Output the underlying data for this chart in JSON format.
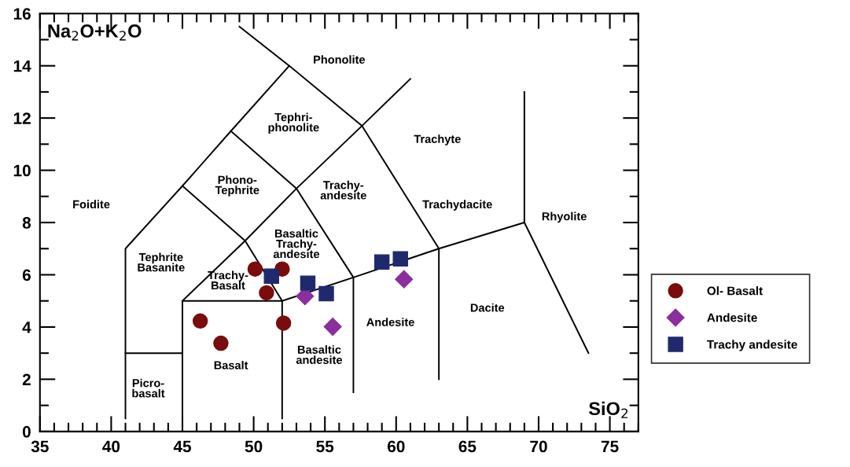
{
  "chart_data": {
    "type": "scatter",
    "xlabel": "SiO$_{2}$",
    "ylabel": "Na$_{2}$O+K$_{2}$O",
    "xlim": [
      35,
      77
    ],
    "ylim": [
      0,
      16
    ],
    "xticks": [
      35,
      40,
      45,
      50,
      55,
      60,
      65,
      70,
      75
    ],
    "yticks": [
      0,
      2,
      4,
      6,
      8,
      10,
      12,
      14,
      16
    ],
    "grid": false,
    "legend": "right",
    "series": [
      {
        "type": "line",
        "color": "#000000",
        "marker": "none",
        "x": [
          41,
          41,
          45,
          48.4,
          52.5,
          49
        ],
        "values": [
          0.5,
          7,
          9.4,
          11.5,
          14,
          15.5
        ]
      },
      {
        "type": "line",
        "color": "#000000",
        "marker": "none",
        "x": [
          41,
          45
        ],
        "values": [
          3,
          3
        ]
      },
      {
        "type": "line",
        "color": "#000000",
        "marker": "none",
        "x": [
          45,
          45,
          52,
          52
        ],
        "values": [
          0,
          5,
          5,
          0.5
        ]
      },
      {
        "type": "line",
        "color": "#000000",
        "marker": "none",
        "x": [
          45,
          49.4,
          53,
          57.6,
          61
        ],
        "values": [
          5,
          7.3,
          9.3,
          11.7,
          13.5
        ]
      },
      {
        "type": "line",
        "color": "#000000",
        "marker": "none",
        "x": [
          45,
          49.4,
          52
        ],
        "values": [
          9.4,
          7.3,
          5
        ]
      },
      {
        "type": "line",
        "color": "#000000",
        "marker": "none",
        "x": [
          48.4,
          53,
          57
        ],
        "values": [
          11.5,
          9.3,
          5.9
        ]
      },
      {
        "type": "line",
        "color": "#000000",
        "marker": "none",
        "x": [
          52.5,
          57.6,
          63
        ],
        "values": [
          14,
          11.7,
          7
        ]
      },
      {
        "type": "line",
        "color": "#000000",
        "marker": "none",
        "x": [
          52,
          57,
          63,
          69,
          73.5
        ],
        "values": [
          5,
          5.9,
          7,
          8,
          3
        ]
      },
      {
        "type": "line",
        "color": "#000000",
        "marker": "none",
        "x": [
          57,
          57
        ],
        "values": [
          5.9,
          1.5
        ]
      },
      {
        "type": "line",
        "color": "#000000",
        "marker": "none",
        "x": [
          63,
          63
        ],
        "values": [
          7,
          2
        ]
      },
      {
        "type": "line",
        "color": "#000000",
        "marker": "none",
        "x": [
          69,
          69
        ],
        "values": [
          8,
          13
        ]
      },
      {
        "name": "Ol- Basalt",
        "color": "#7a0c0c",
        "marker": "circle",
        "x": [
          46.25,
          47.7,
          50.1,
          50.9,
          52.0,
          52.1
        ],
        "values": [
          4.23,
          3.38,
          6.22,
          5.31,
          6.22,
          4.15
        ]
      },
      {
        "name": "Andesite",
        "color": "#8b2e9e",
        "marker": "diamond",
        "x": [
          53.6,
          55.55,
          60.55
        ],
        "values": [
          5.18,
          4.01,
          5.83
        ]
      },
      {
        "name": "Trachy andesite",
        "color": "#1f2a6e",
        "marker": "square",
        "x": [
          51.25,
          53.8,
          55.1,
          59.0,
          60.3
        ],
        "values": [
          5.95,
          5.68,
          5.28,
          6.49,
          6.61
        ]
      }
    ],
    "annotations": [
      "Phonolite",
      "Tephri-\nphonolite",
      "Phono-\nTephrite",
      "Foidite",
      "Tephrite\nBasanite",
      "Trachy-\nBasalt",
      "Basaltic\nTrachy-\nandesite",
      "Trachy-\nandesite",
      "Trachyte",
      "Trachydacite",
      "Rhyolite",
      "Dacite",
      "Andesite",
      "Basaltic\nandesite",
      "Basalt",
      "Picro-\nbasalt"
    ]
  }
}
